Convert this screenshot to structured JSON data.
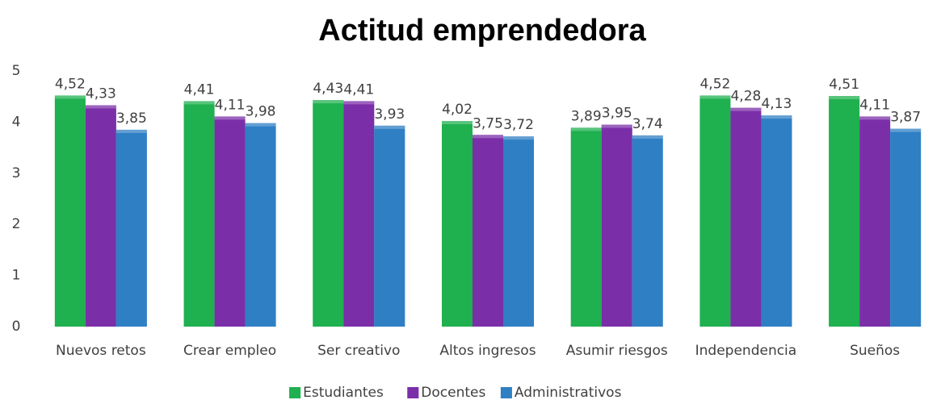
{
  "chart_data": {
    "type": "bar",
    "title": "Actitud emprendedora",
    "categories": [
      "Nuevos retos",
      "Crear empleo",
      "Ser creativo",
      "Altos ingresos",
      "Asumir riesgos",
      "Independencia",
      "Sueños"
    ],
    "series": [
      {
        "name": "Estudiantes",
        "color": "#1fb04f",
        "values": [
          4.52,
          4.41,
          4.43,
          4.02,
          3.89,
          4.52,
          4.51
        ],
        "value_labels": [
          "4,52",
          "4,41",
          "4,43",
          "4,02",
          "3,89",
          "4,52",
          "4,51"
        ]
      },
      {
        "name": "Docentes",
        "color": "#7a2fa8",
        "values": [
          4.33,
          4.11,
          4.41,
          3.75,
          3.95,
          4.28,
          4.11
        ],
        "value_labels": [
          "4,33",
          "4,11",
          "4,41",
          "3,75",
          "3,95",
          "4,28",
          "4,11"
        ]
      },
      {
        "name": "Administrativos",
        "color": "#2f7fc4",
        "values": [
          3.85,
          3.98,
          3.93,
          3.72,
          3.74,
          4.13,
          3.87
        ],
        "value_labels": [
          "3,85",
          "3,98",
          "3,93",
          "3,72",
          "3,74",
          "4,13",
          "3,87"
        ]
      }
    ],
    "ylim": [
      0,
      5
    ],
    "yticks": [
      0,
      1,
      2,
      3,
      4,
      5
    ],
    "grid": false,
    "legend": "bottom"
  }
}
